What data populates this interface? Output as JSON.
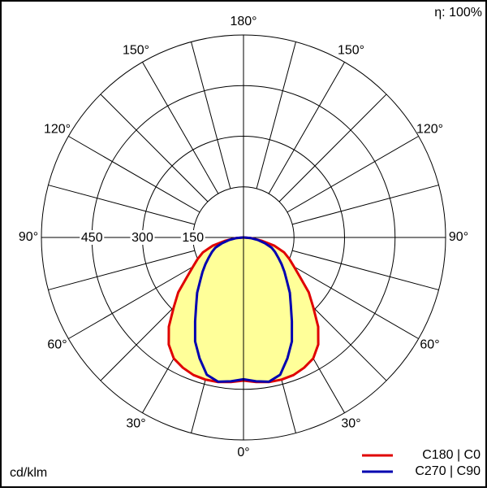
{
  "chart_data": {
    "type": "polar",
    "unit_label": "cd/klm",
    "efficiency_label": "η: 100%",
    "x": [
      0,
      5,
      10,
      15,
      20,
      25,
      30,
      35,
      40,
      45,
      50,
      55,
      60,
      65,
      70,
      75,
      80,
      85,
      90
    ],
    "series": [
      {
        "name": "C180 | C0",
        "color": "#e00000",
        "values": [
          424,
          430,
          435,
          436,
          434,
          426,
          414,
          387,
          345,
          293,
          253,
          205,
          173,
          150,
          128,
          95,
          54,
          25,
          0
        ]
      },
      {
        "name": "C270 | C90",
        "color": "#0000b0",
        "values": [
          420,
          428,
          434,
          421,
          381,
          340,
          287,
          245,
          214,
          182,
          159,
          138,
          119,
          104,
          89,
          66,
          44,
          22,
          0
        ]
      }
    ],
    "fill_color": "#ffff99",
    "rlim": [
      0,
      600
    ],
    "rticks": [
      150,
      300,
      450
    ],
    "thetaticks": [
      {
        "value": 0,
        "label": "0°"
      },
      {
        "value": 30,
        "label": "30°"
      },
      {
        "value": 60,
        "label": "60°"
      },
      {
        "value": 90,
        "label": "90°"
      },
      {
        "value": 120,
        "label": "120°"
      },
      {
        "value": 150,
        "label": "150°"
      },
      {
        "value": 180,
        "label": "180°"
      }
    ],
    "legend": "bottom-right"
  }
}
